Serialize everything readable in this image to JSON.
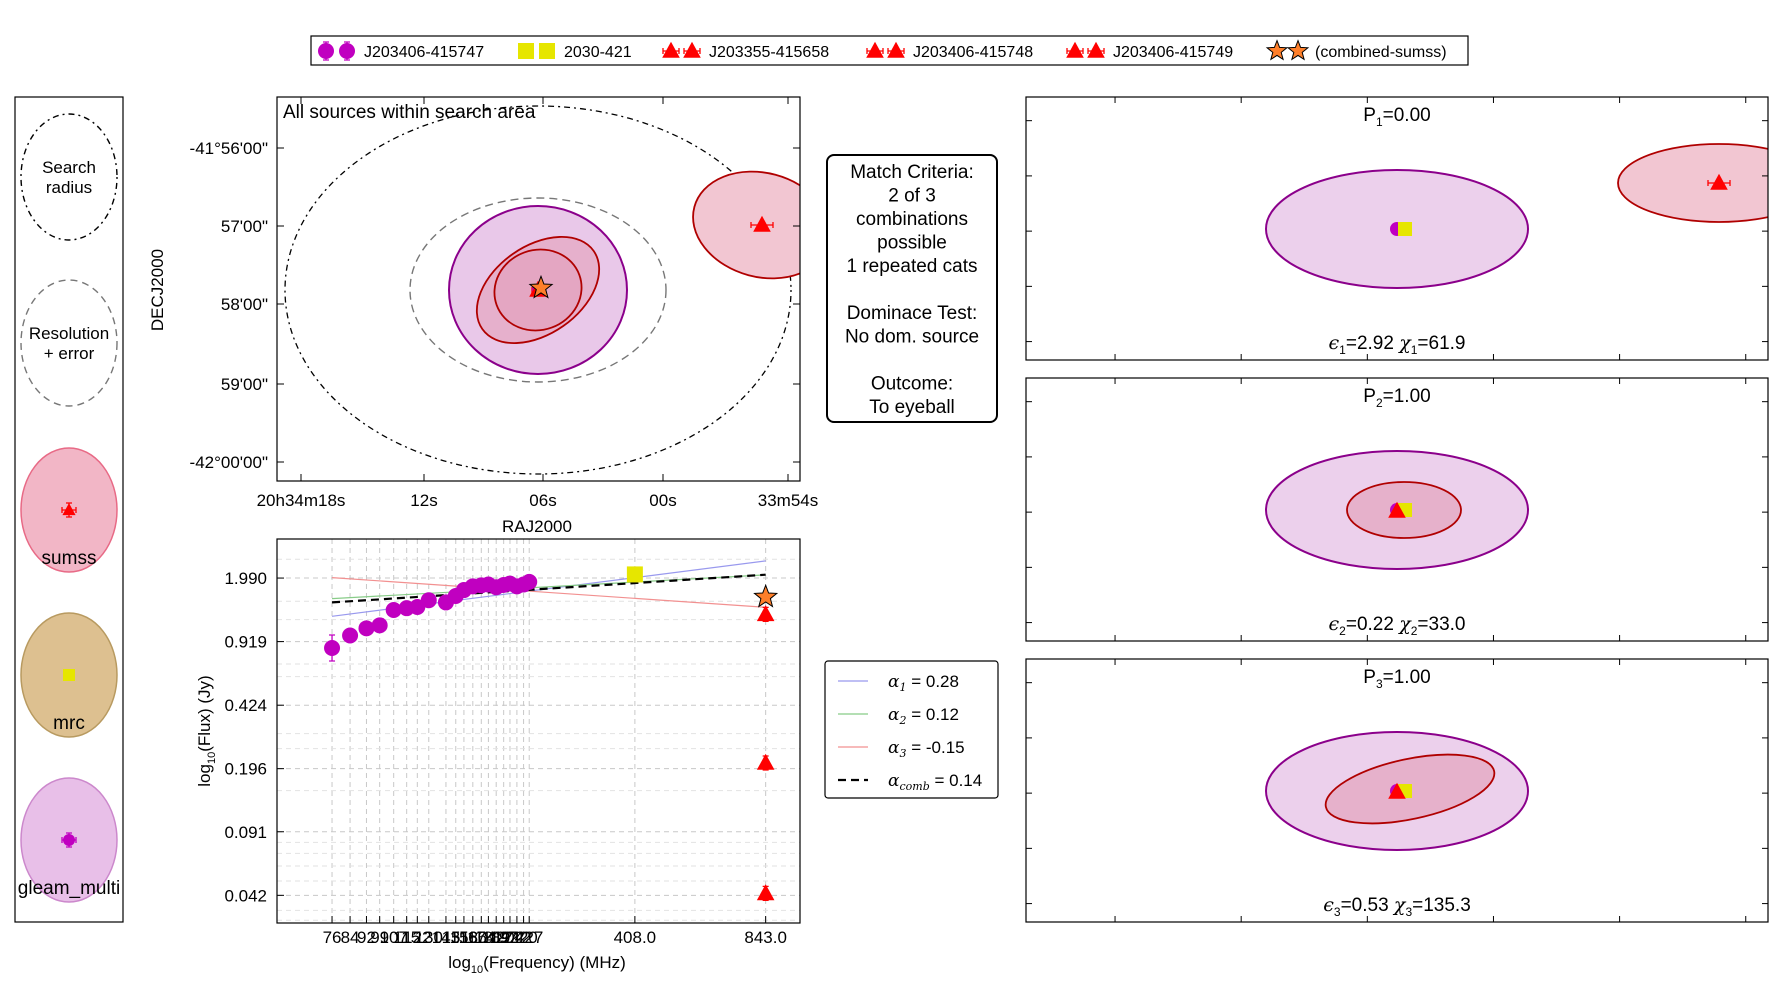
{
  "legend_top": [
    {
      "label": "J203406-415747",
      "marker": "circle",
      "color": "#c000c0"
    },
    {
      "label": "2030-421",
      "marker": "square",
      "color": "#e6e600"
    },
    {
      "label": "J203355-415658",
      "marker": "triangle",
      "color": "#ff0000"
    },
    {
      "label": "J203406-415748",
      "marker": "triangle",
      "color": "#ff0000"
    },
    {
      "label": "J203406-415749",
      "marker": "triangle",
      "color": "#ff0000"
    },
    {
      "label": "(combined-sumss)",
      "marker": "star",
      "color": "#ff7f2a"
    }
  ],
  "key_panel": {
    "search": "Search\nradius",
    "resolution": "Resolution\n+ error",
    "catalogs": [
      {
        "name": "sumss",
        "fill": "#f2b6c6",
        "stroke": "#e86a86",
        "marker": "triangle",
        "color": "#ff0000"
      },
      {
        "name": "mrc",
        "fill": "#ddc090",
        "stroke": "#b89a60",
        "marker": "square",
        "color": "#e6e600"
      },
      {
        "name": "gleam_multi",
        "fill": "#e8bfe8",
        "stroke": "#cc88cc",
        "marker": "circle",
        "color": "#c000c0"
      }
    ]
  },
  "sky_plot": {
    "title": "All sources within search area",
    "xlabel": "RAJ2000",
    "ylabel": "DECJ2000",
    "x_ticks": [
      "20h34m18s",
      "12s",
      "06s",
      "00s",
      "33m54s"
    ],
    "y_ticks": [
      "-41°56'00\"",
      "57'00\"",
      "58'00\"",
      "59'00\"",
      "-42°00'00\""
    ]
  },
  "match_box": {
    "lines": [
      "Match Criteria:",
      "2 of 3",
      "combinations",
      "possible",
      "1 repeated cats",
      "",
      "Dominace Test:",
      "No dom. source",
      "",
      "Outcome:",
      "To eyeball"
    ]
  },
  "sed": {
    "xlabel_pre": "log",
    "xlabel_sub": "10",
    "xlabel_post": "(Frequency) (MHz)",
    "ylabel_pre": "log",
    "ylabel_sub": "10",
    "ylabel_post": "(Flux) (Jy)"
  },
  "fit_legend": [
    {
      "sym": "α",
      "sub": "1",
      "val": " = 0.28",
      "color": "#9999ee",
      "dash": ""
    },
    {
      "sym": "α",
      "sub": "2",
      "val": " = 0.12",
      "color": "#88cc88",
      "dash": ""
    },
    {
      "sym": "α",
      "sub": "3",
      "val": " = -0.15",
      "color": "#f29090",
      "dash": ""
    },
    {
      "sym": "α",
      "sub": "comb",
      "val": " = 0.14",
      "color": "#000000",
      "dash": "8,5"
    }
  ],
  "combos": [
    {
      "p_label": "P",
      "p_sub": "1",
      "p_val": "=0.00",
      "e_sub": "1",
      "e_val": "=2.92",
      "c_sub": "1",
      "c_val": "=61.9"
    },
    {
      "p_label": "P",
      "p_sub": "2",
      "p_val": "=1.00",
      "e_sub": "2",
      "e_val": "=0.22",
      "c_sub": "2",
      "c_val": "=33.0"
    },
    {
      "p_label": "P",
      "p_sub": "3",
      "p_val": "=1.00",
      "e_sub": "3",
      "e_val": "=0.53",
      "c_sub": "3",
      "c_val": "=135.3"
    }
  ],
  "chart_data": {
    "type": "scatter",
    "x_scale": "log",
    "y_scale": "log",
    "x_ticks": [
      "76",
      "84",
      "92",
      "99",
      "107",
      "115",
      "122",
      "130",
      "143",
      "151",
      "158",
      "166",
      "174",
      "181",
      "189",
      "197",
      "204",
      "212",
      "220",
      "227",
      "408.0",
      "843.0"
    ],
    "y_ticks": [
      "1.990",
      "0.919",
      "0.424",
      "0.196",
      "0.091",
      "0.042"
    ],
    "series": [
      {
        "name": "J203406-415747",
        "marker": "circle",
        "color": "#c000c0",
        "x": [
          76,
          84,
          92,
          99,
          107,
          115,
          122,
          130,
          143,
          151,
          158,
          166,
          174,
          181,
          189,
          197,
          204,
          212,
          220,
          227
        ],
        "y": [
          0.85,
          0.99,
          1.08,
          1.12,
          1.35,
          1.38,
          1.4,
          1.52,
          1.48,
          1.6,
          1.72,
          1.8,
          1.82,
          1.84,
          1.78,
          1.83,
          1.86,
          1.8,
          1.84,
          1.9
        ]
      },
      {
        "name": "2030-421",
        "marker": "square",
        "color": "#e6e600",
        "x": [
          408
        ],
        "y": [
          2.08
        ]
      },
      {
        "name": "J203355-415658",
        "marker": "triangle",
        "color": "#ff0000",
        "x": [
          843
        ],
        "y": [
          0.21
        ]
      },
      {
        "name": "J203406-415748",
        "marker": "triangle",
        "color": "#ff0000",
        "x": [
          843
        ],
        "y": [
          1.28
        ]
      },
      {
        "name": "J203406-415749",
        "marker": "triangle",
        "color": "#ff0000",
        "x": [
          843
        ],
        "y": [
          0.043
        ]
      },
      {
        "name": "(combined-sumss)",
        "marker": "star",
        "color": "#ff7f2a",
        "x": [
          843
        ],
        "y": [
          1.58
        ]
      }
    ],
    "fits": [
      {
        "name": "α1",
        "alpha": 0.28,
        "y_at_76": 1.25,
        "color": "#9999ee"
      },
      {
        "name": "α2",
        "alpha": 0.12,
        "y_at_76": 1.55,
        "color": "#88cc88"
      },
      {
        "name": "α3",
        "alpha": -0.15,
        "y_at_76": 2.0,
        "color": "#f29090"
      },
      {
        "name": "αcomb",
        "alpha": 0.14,
        "y_at_76": 1.48,
        "color": "#000000"
      }
    ]
  }
}
